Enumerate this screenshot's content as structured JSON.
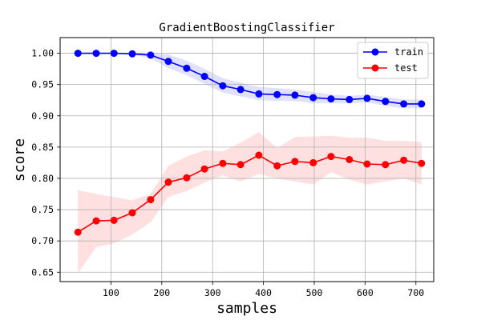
{
  "chart_data": {
    "type": "line",
    "title": "GradientBoostingClassifier",
    "xlabel": "samples",
    "ylabel": "score",
    "xlim": [
      0,
      735
    ],
    "ylim": [
      0.635,
      1.025
    ],
    "xticks": [
      100,
      200,
      300,
      400,
      500,
      600,
      700
    ],
    "yticks": [
      0.65,
      0.7,
      0.75,
      0.8,
      0.85,
      0.9,
      0.95,
      1.0
    ],
    "x": [
      35,
      71,
      106,
      142,
      178,
      213,
      249,
      284,
      320,
      355,
      391,
      427,
      462,
      498,
      533,
      569,
      604,
      640,
      676,
      711
    ],
    "grid": true,
    "legend_position": "top-right",
    "series": [
      {
        "name": "train",
        "color": "#0000ff",
        "values": [
          1.0,
          1.0,
          1.0,
          0.999,
          0.997,
          0.987,
          0.976,
          0.963,
          0.948,
          0.942,
          0.935,
          0.934,
          0.933,
          0.929,
          0.927,
          0.926,
          0.928,
          0.923,
          0.919,
          0.919
        ],
        "band_upper": [
          1.0,
          1.0,
          1.0,
          1.0,
          1.0,
          0.998,
          0.988,
          0.975,
          0.96,
          0.953,
          0.946,
          0.944,
          0.942,
          0.938,
          0.934,
          0.932,
          0.934,
          0.93,
          0.926,
          0.926
        ],
        "band_lower": [
          1.0,
          1.0,
          1.0,
          0.998,
          0.992,
          0.976,
          0.965,
          0.951,
          0.937,
          0.931,
          0.925,
          0.924,
          0.924,
          0.92,
          0.92,
          0.92,
          0.921,
          0.916,
          0.912,
          0.912
        ]
      },
      {
        "name": "test",
        "color": "#ff0000",
        "values": [
          0.714,
          0.732,
          0.733,
          0.745,
          0.766,
          0.794,
          0.801,
          0.815,
          0.824,
          0.822,
          0.837,
          0.82,
          0.827,
          0.825,
          0.835,
          0.83,
          0.823,
          0.822,
          0.829,
          0.824
        ],
        "band_upper": [
          0.781,
          0.775,
          0.77,
          0.765,
          0.775,
          0.82,
          0.835,
          0.845,
          0.843,
          0.857,
          0.874,
          0.848,
          0.866,
          0.867,
          0.868,
          0.865,
          0.865,
          0.86,
          0.86,
          0.858
        ],
        "band_lower": [
          0.648,
          0.69,
          0.696,
          0.71,
          0.73,
          0.77,
          0.78,
          0.793,
          0.805,
          0.795,
          0.807,
          0.8,
          0.795,
          0.79,
          0.81,
          0.798,
          0.79,
          0.795,
          0.8,
          0.79
        ]
      }
    ]
  }
}
